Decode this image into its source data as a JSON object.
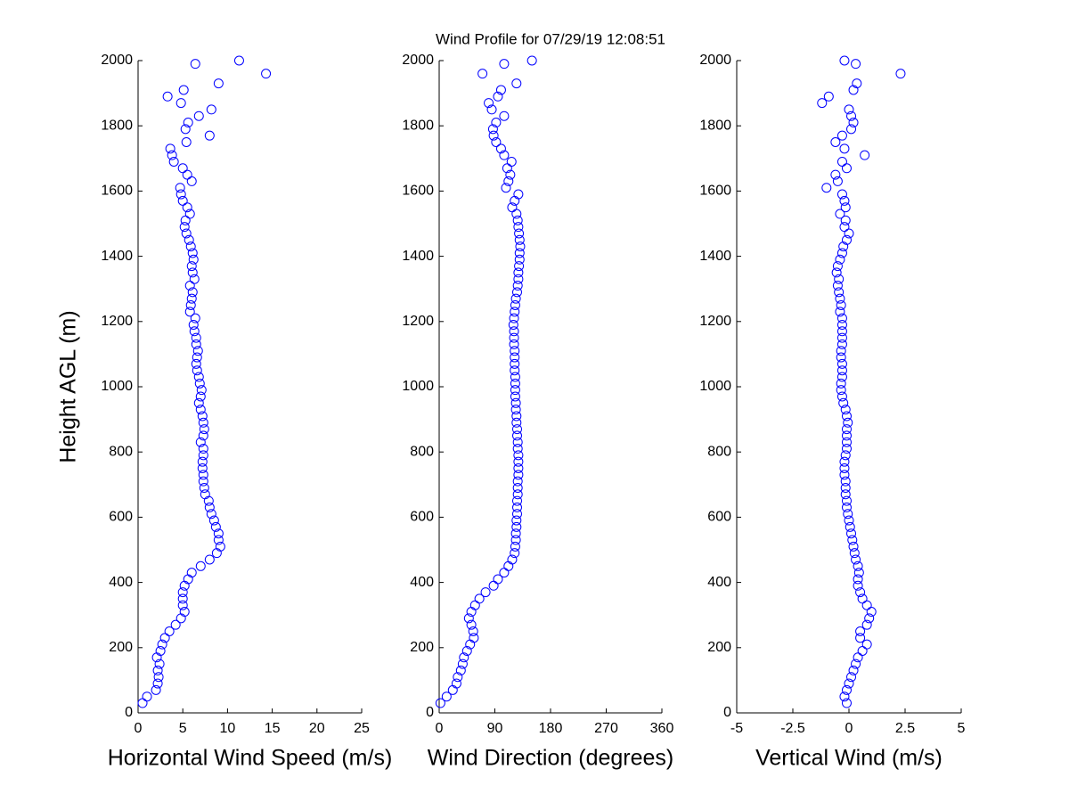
{
  "chart_data": [
    {
      "type": "scatter",
      "xlabel": "Horizontal Wind Speed (m/s)",
      "ylabel": "Height AGL (m)",
      "color": "#0000ff",
      "xlim": [
        0,
        25
      ],
      "xticks": [
        0,
        5,
        10,
        15,
        20,
        25
      ],
      "ylim": [
        0,
        2000
      ],
      "yticks": [
        0,
        200,
        400,
        600,
        800,
        1000,
        1200,
        1400,
        1600,
        1800,
        2000
      ],
      "x": [
        0.5,
        1.0,
        2.0,
        2.2,
        2.3,
        2.2,
        2.4,
        2.1,
        2.5,
        2.7,
        3.0,
        3.5,
        4.2,
        4.8,
        5.2,
        5.0,
        5.0,
        5.0,
        5.2,
        5.6,
        6.0,
        7.0,
        8.0,
        8.8,
        9.2,
        9.0,
        9.0,
        8.7,
        8.5,
        8.2,
        8.0,
        7.9,
        7.5,
        7.4,
        7.3,
        7.3,
        7.2,
        7.2,
        7.3,
        7.3,
        7.0,
        7.3,
        7.4,
        7.3,
        7.2,
        7.0,
        6.8,
        7.0,
        7.1,
        6.9,
        6.8,
        6.6,
        6.5,
        6.6,
        6.7,
        6.5,
        6.5,
        6.3,
        6.2,
        6.4,
        5.8,
        5.9,
        6.0,
        6.1,
        5.8,
        6.3,
        6.1,
        6.0,
        6.2,
        6.1,
        5.9,
        5.7,
        5.4,
        5.2,
        5.3,
        5.8,
        5.5,
        5.0,
        4.8,
        4.7,
        6.0,
        5.5,
        5.0,
        4.0,
        3.8,
        3.6,
        5.4,
        8.0,
        5.3,
        5.6,
        6.8,
        8.2,
        4.8,
        3.3,
        5.1,
        9.0,
        14.3,
        6.4,
        11.3
      ],
      "y": [
        30,
        50,
        70,
        90,
        110,
        130,
        150,
        170,
        190,
        210,
        230,
        250,
        270,
        290,
        310,
        330,
        350,
        370,
        390,
        410,
        430,
        450,
        470,
        490,
        510,
        530,
        550,
        570,
        590,
        610,
        630,
        650,
        670,
        690,
        710,
        730,
        750,
        770,
        790,
        810,
        830,
        850,
        870,
        890,
        910,
        930,
        950,
        970,
        990,
        1010,
        1030,
        1050,
        1070,
        1090,
        1110,
        1130,
        1150,
        1170,
        1190,
        1210,
        1230,
        1250,
        1270,
        1290,
        1310,
        1330,
        1350,
        1370,
        1390,
        1410,
        1430,
        1450,
        1470,
        1490,
        1510,
        1530,
        1550,
        1570,
        1590,
        1610,
        1630,
        1650,
        1670,
        1690,
        1710,
        1730,
        1750,
        1770,
        1790,
        1810,
        1830,
        1850,
        1870,
        1890,
        1910,
        1930,
        1960,
        1990,
        2000
      ]
    },
    {
      "type": "scatter",
      "title": "Wind Profile for  07/29/19 12:08:51",
      "xlabel": "Wind Direction (degrees)",
      "color": "#0000ff",
      "xlim": [
        0,
        360
      ],
      "xticks": [
        0,
        90,
        180,
        270,
        360
      ],
      "ylim": [
        0,
        2000
      ],
      "yticks": [
        0,
        200,
        400,
        600,
        800,
        1000,
        1200,
        1400,
        1600,
        1800,
        2000
      ],
      "x": [
        2,
        12,
        22,
        28,
        30,
        35,
        38,
        40,
        45,
        50,
        56,
        55,
        52,
        48,
        52,
        58,
        65,
        75,
        88,
        95,
        105,
        112,
        118,
        122,
        123,
        124,
        124,
        125,
        125,
        126,
        126,
        126,
        127,
        127,
        127,
        128,
        128,
        128,
        128,
        127,
        127,
        126,
        126,
        125,
        125,
        124,
        124,
        123,
        123,
        123,
        123,
        122,
        122,
        122,
        122,
        121,
        121,
        121,
        120,
        121,
        122,
        123,
        124,
        126,
        127,
        128,
        128,
        129,
        130,
        130,
        131,
        130,
        129,
        128,
        127,
        125,
        118,
        122,
        128,
        108,
        112,
        115,
        110,
        117,
        105,
        100,
        92,
        88,
        87,
        92,
        105,
        85,
        80,
        95,
        100,
        125,
        70,
        105,
        150
      ],
      "y": [
        30,
        50,
        70,
        90,
        110,
        130,
        150,
        170,
        190,
        210,
        230,
        250,
        270,
        290,
        310,
        330,
        350,
        370,
        390,
        410,
        430,
        450,
        470,
        490,
        510,
        530,
        550,
        570,
        590,
        610,
        630,
        650,
        670,
        690,
        710,
        730,
        750,
        770,
        790,
        810,
        830,
        850,
        870,
        890,
        910,
        930,
        950,
        970,
        990,
        1010,
        1030,
        1050,
        1070,
        1090,
        1110,
        1130,
        1150,
        1170,
        1190,
        1210,
        1230,
        1250,
        1270,
        1290,
        1310,
        1330,
        1350,
        1370,
        1390,
        1410,
        1430,
        1450,
        1470,
        1490,
        1510,
        1530,
        1550,
        1570,
        1590,
        1610,
        1630,
        1650,
        1670,
        1690,
        1710,
        1730,
        1750,
        1770,
        1790,
        1810,
        1830,
        1850,
        1870,
        1890,
        1910,
        1930,
        1960,
        1990,
        2000
      ]
    },
    {
      "type": "scatter",
      "xlabel": "Vertical Wind (m/s)",
      "color": "#0000ff",
      "xlim": [
        -5,
        5
      ],
      "xticks": [
        -5,
        -2.5,
        0,
        2.5,
        5
      ],
      "ylim": [
        0,
        2000
      ],
      "yticks": [
        0,
        200,
        400,
        600,
        800,
        1000,
        1200,
        1400,
        1600,
        1800,
        2000
      ],
      "x": [
        -0.1,
        -0.2,
        -0.1,
        0,
        0.1,
        0.2,
        0.3,
        0.4,
        0.6,
        0.8,
        0.5,
        0.5,
        0.8,
        0.9,
        1.0,
        0.8,
        0.6,
        0.5,
        0.4,
        0.4,
        0.45,
        0.4,
        0.3,
        0.25,
        0.2,
        0.15,
        0.1,
        0.05,
        0,
        -0.05,
        -0.1,
        -0.1,
        -0.15,
        -0.15,
        -0.15,
        -0.2,
        -0.2,
        -0.2,
        -0.15,
        -0.1,
        -0.1,
        -0.1,
        -0.1,
        -0.05,
        -0.1,
        -0.15,
        -0.25,
        -0.3,
        -0.35,
        -0.35,
        -0.3,
        -0.3,
        -0.3,
        -0.35,
        -0.35,
        -0.3,
        -0.3,
        -0.3,
        -0.3,
        -0.3,
        -0.4,
        -0.35,
        -0.4,
        -0.45,
        -0.5,
        -0.45,
        -0.55,
        -0.5,
        -0.4,
        -0.3,
        -0.25,
        -0.1,
        0,
        -0.2,
        -0.15,
        -0.4,
        -0.15,
        -0.2,
        -0.3,
        -1.0,
        -0.5,
        -0.6,
        -0.1,
        -0.3,
        0.7,
        -0.2,
        -0.6,
        -0.3,
        0.1,
        0.2,
        0.1,
        0,
        -1.2,
        -0.9,
        0.2,
        0.35,
        2.3,
        0.3,
        -0.2
      ],
      "y": [
        30,
        50,
        70,
        90,
        110,
        130,
        150,
        170,
        190,
        210,
        230,
        250,
        270,
        290,
        310,
        330,
        350,
        370,
        390,
        410,
        430,
        450,
        470,
        490,
        510,
        530,
        550,
        570,
        590,
        610,
        630,
        650,
        670,
        690,
        710,
        730,
        750,
        770,
        790,
        810,
        830,
        850,
        870,
        890,
        910,
        930,
        950,
        970,
        990,
        1010,
        1030,
        1050,
        1070,
        1090,
        1110,
        1130,
        1150,
        1170,
        1190,
        1210,
        1230,
        1250,
        1270,
        1290,
        1310,
        1330,
        1350,
        1370,
        1390,
        1410,
        1430,
        1450,
        1470,
        1490,
        1510,
        1530,
        1550,
        1570,
        1590,
        1610,
        1630,
        1650,
        1670,
        1690,
        1710,
        1730,
        1750,
        1770,
        1790,
        1810,
        1830,
        1850,
        1870,
        1890,
        1910,
        1930,
        1960,
        1990,
        2000
      ]
    }
  ]
}
